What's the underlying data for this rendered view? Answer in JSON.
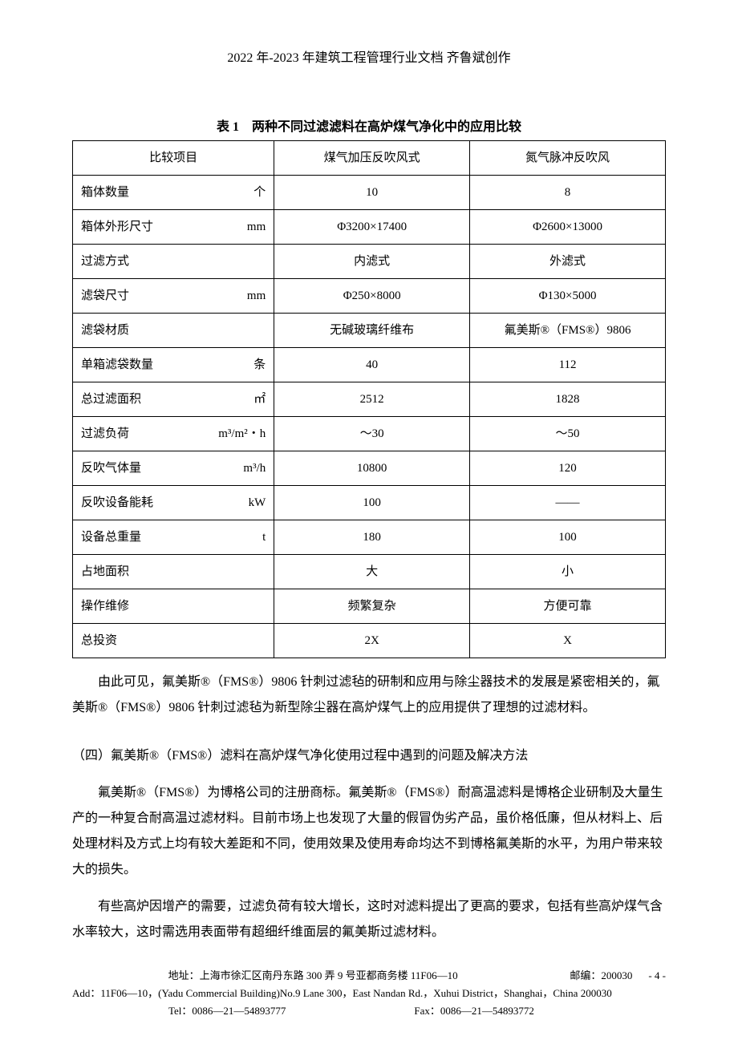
{
  "header": "2022 年-2023 年建筑工程管理行业文档 齐鲁斌创作",
  "table": {
    "caption": "表 1　两种不同过滤滤料在高炉煤气净化中的应用比较",
    "headers": [
      "比较项目",
      "煤气加压反吹风式",
      "氮气脉冲反吹风"
    ],
    "rows": [
      {
        "label": "箱体数量",
        "unit": "个",
        "v1": "10",
        "v2": "8"
      },
      {
        "label": "箱体外形尺寸",
        "unit": "mm",
        "v1": "Φ3200×17400",
        "v2": "Φ2600×13000"
      },
      {
        "label": "过滤方式",
        "unit": "",
        "v1": "内滤式",
        "v2": "外滤式"
      },
      {
        "label": "滤袋尺寸",
        "unit": "mm",
        "v1": "Φ250×8000",
        "v2": "Φ130×5000"
      },
      {
        "label": "滤袋材质",
        "unit": "",
        "v1": "无碱玻璃纤维布",
        "v2": "氟美斯®（FMS®）9806"
      },
      {
        "label": "单箱滤袋数量",
        "unit": "条",
        "v1": "40",
        "v2": "112"
      },
      {
        "label": "总过滤面积",
        "unit": "㎡",
        "v1": "2512",
        "v2": "1828"
      },
      {
        "label": "过滤负荷",
        "unit": "m³/m²・h",
        "v1": "～30",
        "v2": "～50"
      },
      {
        "label": "反吹气体量",
        "unit": "m³/h",
        "v1": "10800",
        "v2": "120"
      },
      {
        "label": "反吹设备能耗",
        "unit": "kW",
        "v1": "100",
        "v2": "——"
      },
      {
        "label": "设备总重量",
        "unit": "t",
        "v1": "180",
        "v2": "100"
      },
      {
        "label": "占地面积",
        "unit": "",
        "v1": "大",
        "v2": "小"
      },
      {
        "label": "操作维修",
        "unit": "",
        "v1": "频繁复杂",
        "v2": "方便可靠"
      },
      {
        "label": "总投资",
        "unit": "",
        "v1": "2X",
        "v2": "X"
      }
    ]
  },
  "para1": "由此可见，氟美斯®（FMS®）9806 针刺过滤毡的研制和应用与除尘器技术的发展是紧密相关的，氟美斯®（FMS®）9806 针刺过滤毡为新型除尘器在高炉煤气上的应用提供了理想的过滤材料。",
  "section": "（四）氟美斯®（FMS®）滤料在高炉煤气净化使用过程中遇到的问题及解决方法",
  "para2": "氟美斯®（FMS®）为博格公司的注册商标。氟美斯®（FMS®）耐高温滤料是博格企业研制及大量生产的一种复合耐高温过滤材料。目前市场上也发现了大量的假冒伪劣产品，虽价格低廉，但从材料上、后处理材料及方式上均有较大差距和不同，使用效果及使用寿命均达不到博格氟美斯的水平，为用户带来较大的损失。",
  "para3": "有些高炉因增产的需要，过滤负荷有较大增长，这时对滤料提出了更高的要求，包括有些高炉煤气含水率较大，这时需选用表面带有超细纤维面层的氟美斯过滤材料。",
  "footer": {
    "addr_cn": "地址：上海市徐汇区南丹东路 300 弄 9 号亚都商务楼 11F06—10",
    "zip": "邮编：200030",
    "page": "- 4 -",
    "addr_en": "Add：11F06—10，(Yadu Commercial Building)No.9 Lane 300，East Nandan Rd.，Xuhui District，Shanghai，China  200030",
    "tel": "Tel：0086—21—54893777",
    "fax": "Fax：0086—21—54893772"
  }
}
